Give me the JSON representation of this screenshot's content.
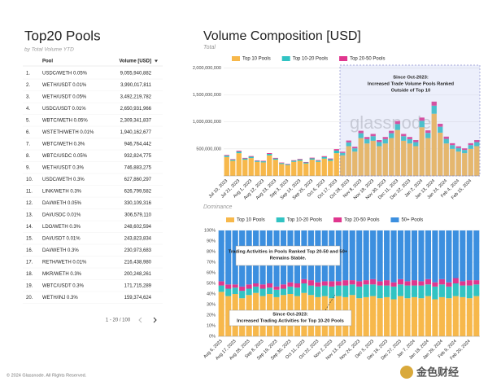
{
  "table": {
    "title": "Top20 Pools",
    "subtitle": "by Total Volume YTD",
    "columns": [
      "Pool",
      "Volume [USD]"
    ],
    "rows": [
      [
        "1.",
        "USDC/WETH 0.05%",
        "9,055,940,882"
      ],
      [
        "2.",
        "WETH/USDT 0.01%",
        "3,990,017,811"
      ],
      [
        "3.",
        "WETH/USDT 0.05%",
        "3,492,219,782"
      ],
      [
        "4.",
        "USDC/USDT 0.01%",
        "2,650,931,966"
      ],
      [
        "5.",
        "WBTC/WETH 0.05%",
        "2,309,341,837"
      ],
      [
        "6.",
        "WSTETH/WETH 0.01%",
        "1,940,162,677"
      ],
      [
        "7.",
        "WBTC/WETH 0.3%",
        "946,764,442"
      ],
      [
        "8.",
        "WBTC/USDC 0.05%",
        "932,824,775"
      ],
      [
        "9.",
        "WETH/USDT 0.3%",
        "746,883,275"
      ],
      [
        "10.",
        "USDC/WETH 0.3%",
        "627,860,297"
      ],
      [
        "11.",
        "LINK/WETH 0.3%",
        "626,799,582"
      ],
      [
        "12.",
        "DAI/WETH 0.05%",
        "330,109,316"
      ],
      [
        "13.",
        "DAI/USDC 0.01%",
        "306,579,110"
      ],
      [
        "14.",
        "LDO/WETH 0.3%",
        "248,602,594"
      ],
      [
        "15.",
        "DAI/USDT 0.01%",
        "243,823,834"
      ],
      [
        "16.",
        "DAI/WETH 0.3%",
        "230,973,683"
      ],
      [
        "17.",
        "RETH/WETH 0.01%",
        "216,438,980"
      ],
      [
        "18.",
        "MKR/WETH 0.3%",
        "200,248,261"
      ],
      [
        "19.",
        "WBTC/USDT 0.3%",
        "171,715,289"
      ],
      [
        "20.",
        "WETH/INJ 0.3%",
        "159,374,624"
      ]
    ],
    "pagination": "1 - 20 / 100"
  },
  "footer": "© 2024 Glassnode. All Rights Reserved.",
  "logo_text": "金色财经",
  "panel_title": "Volume Composition [USD]",
  "chart_data": [
    {
      "type": "bar",
      "stacked": true,
      "subtitle": "Total",
      "watermark": "glassnode",
      "categories": [
        "Jul 10, 2023",
        null,
        "Jul 21, 2023",
        null,
        "Aug 1, 2023",
        null,
        "Aug 12, 2023",
        null,
        "Aug 23, 2023",
        null,
        "Sep 3, 2023",
        null,
        "Sep 14, 2023",
        null,
        "Sep 25, 2023",
        null,
        "Oct 6, 2023",
        null,
        "Oct 17, 2023",
        null,
        "Oct 28, 2023",
        null,
        "Nov 8, 2023",
        null,
        "Nov 19, 2023",
        null,
        "Nov 30, 2023",
        null,
        "Dec 11, 2023",
        null,
        "Dec 22, 2023",
        null,
        "Jan 2, 2024",
        null,
        "Jan 13, 2024",
        null,
        "Jan 24, 2024",
        null,
        "Feb 4, 2024",
        null,
        "Feb 15, 2024",
        null
      ],
      "series": [
        {
          "name": "Top 10 Pools",
          "color": "#f7b84b",
          "values": [
            350000000,
            280000000,
            420000000,
            300000000,
            330000000,
            260000000,
            250000000,
            380000000,
            300000000,
            220000000,
            200000000,
            260000000,
            280000000,
            230000000,
            300000000,
            260000000,
            320000000,
            280000000,
            420000000,
            380000000,
            550000000,
            450000000,
            700000000,
            600000000,
            650000000,
            550000000,
            600000000,
            700000000,
            850000000,
            650000000,
            600000000,
            550000000,
            900000000,
            700000000,
            1150000000,
            800000000,
            600000000,
            500000000,
            450000000,
            420000000,
            500000000,
            550000000
          ]
        },
        {
          "name": "Top 10-20 Pools",
          "color": "#31c3c3",
          "values": [
            25000000,
            20000000,
            30000000,
            22000000,
            25000000,
            18000000,
            20000000,
            28000000,
            22000000,
            18000000,
            15000000,
            20000000,
            22000000,
            18000000,
            25000000,
            22000000,
            30000000,
            28000000,
            50000000,
            45000000,
            70000000,
            60000000,
            90000000,
            80000000,
            85000000,
            75000000,
            80000000,
            90000000,
            110000000,
            85000000,
            80000000,
            75000000,
            120000000,
            95000000,
            150000000,
            110000000,
            85000000,
            70000000,
            65000000,
            60000000,
            70000000,
            75000000
          ]
        },
        {
          "name": "Top 20-50 Pools",
          "color": "#e0368e",
          "values": [
            12000000,
            10000000,
            15000000,
            11000000,
            12000000,
            9000000,
            10000000,
            14000000,
            11000000,
            9000000,
            8000000,
            10000000,
            11000000,
            9000000,
            12000000,
            11000000,
            15000000,
            14000000,
            25000000,
            22000000,
            35000000,
            30000000,
            45000000,
            40000000,
            42000000,
            38000000,
            40000000,
            45000000,
            55000000,
            42000000,
            40000000,
            38000000,
            60000000,
            48000000,
            75000000,
            55000000,
            42000000,
            35000000,
            32000000,
            30000000,
            35000000,
            38000000
          ]
        }
      ],
      "ylim": [
        0,
        2050000000
      ],
      "yticks": [
        {
          "value": 500000000,
          "label": "500,000,000"
        },
        {
          "value": 1000000000,
          "label": "1,000,000,000"
        },
        {
          "value": 1500000000,
          "label": "1,500,000,000"
        },
        {
          "value": 2000000000,
          "label": "2,000,000,000"
        }
      ],
      "grid": true,
      "annotations": [
        [
          "Since Oct-2023:",
          "Increased Trade Volume Pools Ranked",
          "Outside of Top 10"
        ]
      ]
    },
    {
      "type": "bar",
      "stacked": true,
      "subtitle": "Dominance",
      "categories": [
        "Aug 6, 2023",
        null,
        "Aug 17, 2023",
        null,
        "Aug 28, 2023",
        null,
        "Sep 8, 2023",
        null,
        "Sep 19, 2023",
        null,
        "Sep 30, 2023",
        null,
        "Oct 11, 2023",
        null,
        "Oct 22, 2023",
        null,
        "Nov 2, 2023",
        null,
        "Nov 13, 2023",
        null,
        "Nov 24, 2023",
        null,
        "Dec 5, 2023",
        null,
        "Dec 16, 2023",
        null,
        "Dec 27, 2023",
        null,
        "Jan 7, 2024",
        null,
        "Jan 18, 2024",
        null,
        "Jan 29, 2024",
        null,
        "Feb 9, 2024",
        null,
        "Feb 20, 2024",
        null
      ],
      "series": [
        {
          "name": "Top 10 Pools",
          "color": "#f7b84b",
          "values": [
            42,
            38,
            40,
            36,
            39,
            41,
            38,
            40,
            37,
            39,
            40,
            38,
            41,
            39,
            37,
            38,
            36,
            38,
            37,
            39,
            36,
            37,
            38,
            36,
            37,
            35,
            38,
            36,
            37,
            36,
            38,
            35,
            37,
            36,
            38,
            37,
            36,
            38
          ]
        },
        {
          "name": "Top 10-20 Pools",
          "color": "#31c3c3",
          "values": [
            6,
            7,
            6,
            7,
            6,
            6,
            7,
            6,
            7,
            6,
            7,
            8,
            9,
            9,
            10,
            10,
            11,
            10,
            11,
            10,
            11,
            12,
            11,
            12,
            11,
            12,
            11,
            12,
            11,
            12,
            11,
            12,
            12,
            11,
            12,
            11,
            12,
            11
          ]
        },
        {
          "name": "Top 20-50 Pools",
          "color": "#e0368e",
          "values": [
            4,
            4,
            3,
            4,
            4,
            3,
            4,
            4,
            3,
            4,
            4,
            4,
            4,
            5,
            4,
            4,
            5,
            4,
            5,
            4,
            5,
            4,
            5,
            4,
            5,
            4,
            5,
            4,
            5,
            4,
            5,
            4,
            5,
            4,
            5,
            4,
            5,
            4
          ]
        },
        {
          "name": "50+ Pools",
          "color": "#3c8fdf",
          "values": [
            48,
            51,
            51,
            53,
            51,
            50,
            51,
            50,
            53,
            51,
            49,
            50,
            46,
            47,
            49,
            48,
            48,
            48,
            47,
            47,
            48,
            47,
            46,
            48,
            47,
            49,
            46,
            48,
            47,
            48,
            46,
            49,
            46,
            49,
            45,
            48,
            47,
            47
          ]
        }
      ],
      "ylim": [
        0,
        100
      ],
      "yticks": [
        {
          "value": 0,
          "label": "0%"
        },
        {
          "value": 10,
          "label": "10%"
        },
        {
          "value": 20,
          "label": "20%"
        },
        {
          "value": 30,
          "label": "30%"
        },
        {
          "value": 40,
          "label": "40%"
        },
        {
          "value": 50,
          "label": "50%"
        },
        {
          "value": 60,
          "label": "60%"
        },
        {
          "value": 70,
          "label": "70%"
        },
        {
          "value": 80,
          "label": "80%"
        },
        {
          "value": 90,
          "label": "90%"
        },
        {
          "value": 100,
          "label": "100%"
        }
      ],
      "grid": true,
      "annotations": [
        [
          "Trading Activities in Pools Ranked Top 20-50 and 50+",
          "Remains Stable."
        ],
        [
          "Since Oct-2023:",
          "Increased Trading Activities for Top 10-20 Pools"
        ]
      ]
    }
  ]
}
